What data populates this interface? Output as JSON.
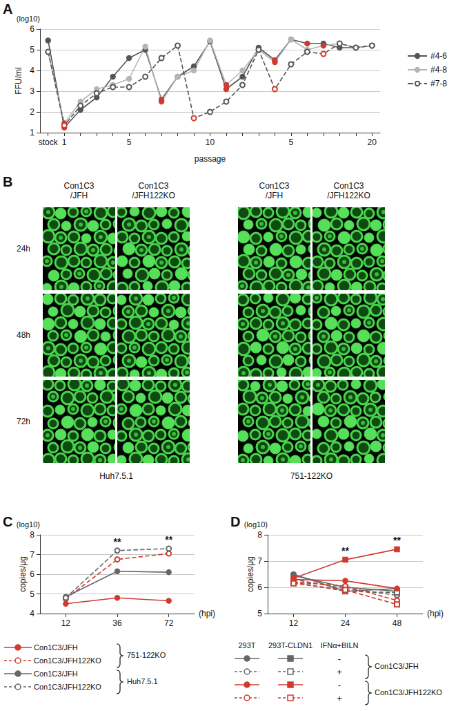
{
  "panel_B": {
    "panel": "B",
    "groups": [
      {
        "label": "Huh7.5.1",
        "columns": [
          "Con1C3/JFH",
          "Con1C3/JFH122KO"
        ]
      },
      {
        "label": "751-122KO",
        "columns": [
          "Con1C3/JFH",
          "Con1C3/JFH122KO"
        ]
      }
    ],
    "rows": [
      "24h",
      "48h",
      "72h"
    ]
  },
  "chart_data": [
    {
      "panel": "A",
      "type": "line",
      "x_label": "passage",
      "y_label": "FFU/ml",
      "y_unit": "(log10)",
      "categories": [
        "stock",
        "1",
        null,
        null,
        null,
        "5",
        null,
        null,
        null,
        null,
        "10",
        null,
        null,
        null,
        null,
        "5",
        null,
        null,
        null,
        null,
        "20"
      ],
      "ylim": [
        1,
        6
      ],
      "yticks": [
        1,
        2,
        3,
        4,
        5,
        6
      ],
      "grid": true,
      "legend": "right",
      "series": [
        {
          "name": "#4-6",
          "color": "#555555",
          "marker": "circle",
          "line_style": "solid",
          "values": [
            5.45,
            1.25,
            2.1,
            2.7,
            3.7,
            4.6,
            5.0,
            2.6,
            3.7,
            4.2,
            5.4,
            3.1,
            3.7,
            5.1,
            4.5,
            5.5,
            5.3,
            5.3,
            5.1,
            5.1,
            5.2
          ],
          "colors": [
            "#555555",
            "#d03a2f",
            "#555555",
            "#555555",
            "#555555",
            "#555555",
            "#555555",
            "#d03a2f",
            "#555555",
            "#555555",
            "#555555",
            "#d03a2f",
            "#555555",
            "#555555",
            "#d03a2f",
            "#555555",
            "#d03a2f",
            "#555555",
            "#555555",
            "#555555",
            "#555555"
          ]
        },
        {
          "name": "#4-8",
          "color": "#b5b5b5",
          "marker": "circle",
          "line_style": "solid",
          "values": [
            4.9,
            1.45,
            2.5,
            3.1,
            3.3,
            3.6,
            5.15,
            2.5,
            3.7,
            4.0,
            5.45,
            3.3,
            4.0,
            5.0,
            4.4,
            5.5,
            5.0,
            5.2,
            5.3,
            5.1,
            5.2
          ],
          "colors": [
            "#b5b5b5",
            "#d03a2f",
            "#b5b5b5",
            "#b5b5b5",
            "#b5b5b5",
            "#b5b5b5",
            "#b5b5b5",
            "#d03a2f",
            "#b5b5b5",
            "#b5b5b5",
            "#b5b5b5",
            "#d03a2f",
            "#b5b5b5",
            "#b5b5b5",
            "#d03a2f",
            "#b5b5b5",
            "#b5b5b5",
            "#d03a2f",
            "#b5b5b5",
            "#b5b5b5",
            "#b5b5b5"
          ]
        },
        {
          "name": "#7-8",
          "color": "#555555",
          "marker": "emptyCircle",
          "line_style": "dashed",
          "values": [
            4.9,
            1.35,
            2.3,
            2.9,
            3.2,
            3.2,
            3.7,
            4.6,
            5.2,
            1.7,
            2.0,
            2.5,
            3.3,
            5.0,
            3.1,
            4.3,
            4.9,
            4.8,
            5.3,
            5.1,
            5.2
          ],
          "colors": [
            "#555555",
            "#d03a2f",
            "#555555",
            "#555555",
            "#555555",
            "#555555",
            "#555555",
            "#555555",
            "#555555",
            "#d03a2f",
            "#555555",
            "#555555",
            "#555555",
            "#555555",
            "#d03a2f",
            "#555555",
            "#555555",
            "#d03a2f",
            "#555555",
            "#555555",
            "#555555"
          ]
        }
      ]
    },
    {
      "panel": "C",
      "type": "line",
      "x_label": "(hpi)",
      "y_label": "copies/μg",
      "y_unit": "(log10)",
      "categories": [
        "12",
        "36",
        "72"
      ],
      "ylim": [
        4,
        8
      ],
      "yticks": [
        4,
        5,
        6,
        7,
        8
      ],
      "grid": true,
      "legend": "bottom",
      "annotations": [
        {
          "text": "**",
          "x": "36"
        },
        {
          "text": "**",
          "x": "72"
        }
      ],
      "legend_groups": [
        {
          "label": "751-122KO",
          "series": [
            0,
            1
          ]
        },
        {
          "label": "Huh7.5.1",
          "series": [
            2,
            3
          ]
        }
      ],
      "series": [
        {
          "name": "Con1C3/JFH",
          "color": "#d03a2f",
          "marker": "circle",
          "line_style": "solid",
          "values": [
            4.5,
            4.8,
            4.65
          ]
        },
        {
          "name": "Con1C3/JFH122KO",
          "color": "#d03a2f",
          "marker": "emptyCircle",
          "line_style": "dashed",
          "values": [
            4.75,
            6.75,
            7.05
          ]
        },
        {
          "name": "Con1C3/JFH",
          "color": "#666666",
          "marker": "circle",
          "line_style": "solid",
          "values": [
            4.85,
            6.15,
            6.1
          ]
        },
        {
          "name": "Con1C3/JFH122KO",
          "color": "#666666",
          "marker": "emptyCircle",
          "line_style": "dashed",
          "values": [
            4.8,
            7.2,
            7.3
          ]
        }
      ]
    },
    {
      "panel": "D",
      "type": "line",
      "x_label": "(hpi)",
      "y_label": "copies/μg",
      "y_unit": "(log10)",
      "categories": [
        "12",
        "24",
        "48"
      ],
      "ylim": [
        5,
        8
      ],
      "yticks": [
        5,
        6,
        7,
        8
      ],
      "grid": true,
      "legend": "bottom",
      "annotations": [
        {
          "text": "**",
          "x": "24"
        },
        {
          "text": "**",
          "x": "48"
        }
      ],
      "legend_columns": [
        "293T",
        "293T-CLDN1",
        "IFNα+BILN"
      ],
      "series": [
        {
          "name": "Con1C3/JFH",
          "cell": "293T",
          "treatment": "-",
          "color": "#666666",
          "marker": "circle",
          "line_style": "solid",
          "values": [
            6.5,
            5.85,
            5.95
          ]
        },
        {
          "name": "Con1C3/JFH",
          "cell": "293T-CLDN1",
          "treatment": "-",
          "color": "#666666",
          "marker": "rect",
          "line_style": "solid",
          "values": [
            6.45,
            6.0,
            5.85
          ]
        },
        {
          "name": "Con1C3/JFH",
          "cell": "293T",
          "treatment": "+",
          "color": "#666666",
          "marker": "emptyCircle",
          "line_style": "dashed",
          "values": [
            6.3,
            5.95,
            5.7
          ]
        },
        {
          "name": "Con1C3/JFH",
          "cell": "293T-CLDN1",
          "treatment": "+",
          "color": "#666666",
          "marker": "emptyRect",
          "line_style": "dashed",
          "values": [
            6.2,
            5.85,
            5.8
          ]
        },
        {
          "name": "Con1C3/JFH122KO",
          "cell": "293T",
          "treatment": "-",
          "color": "#d03a2f",
          "marker": "circle",
          "line_style": "solid",
          "values": [
            6.3,
            6.25,
            5.95
          ]
        },
        {
          "name": "Con1C3/JFH122KO",
          "cell": "293T-CLDN1",
          "treatment": "-",
          "color": "#d03a2f",
          "marker": "rect",
          "line_style": "solid",
          "values": [
            6.35,
            7.05,
            7.45
          ]
        },
        {
          "name": "Con1C3/JFH122KO",
          "cell": "293T",
          "treatment": "+",
          "color": "#d03a2f",
          "marker": "emptyCircle",
          "line_style": "dashed",
          "values": [
            6.2,
            6.05,
            5.5
          ]
        },
        {
          "name": "Con1C3/JFH122KO",
          "cell": "293T-CLDN1",
          "treatment": "+",
          "color": "#d03a2f",
          "marker": "emptyRect",
          "line_style": "dashed",
          "values": [
            6.15,
            5.9,
            5.35
          ]
        }
      ]
    }
  ]
}
